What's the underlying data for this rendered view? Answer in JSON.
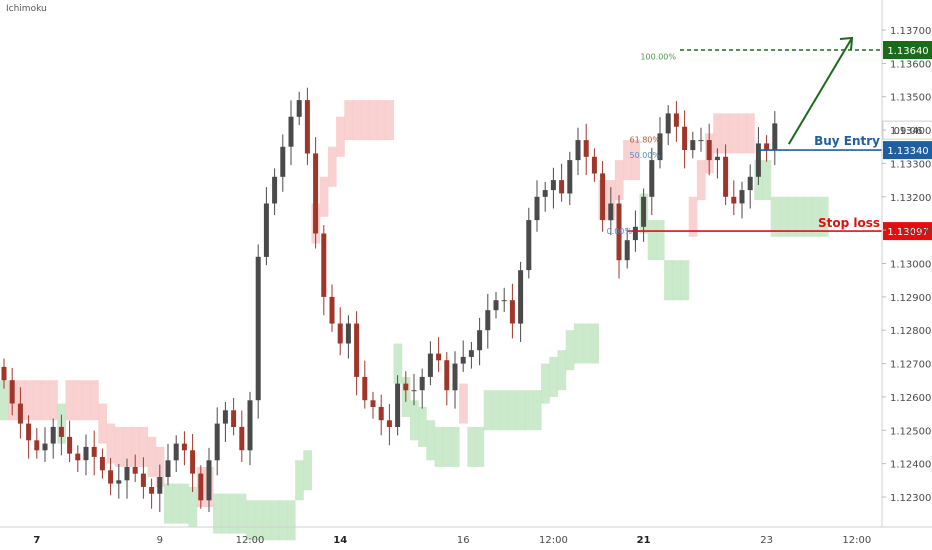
{
  "indicator_label": "Ichimoku",
  "chart_data": {
    "type": "candlestick",
    "indicator": "Ichimoku",
    "ylim": [
      1.1221,
      1.1379
    ],
    "y_ticks": [
      "1.12300",
      "1.12400",
      "1.12500",
      "1.12600",
      "1.12700",
      "1.12800",
      "1.12900",
      "1.13000",
      "1.13100",
      "1.13200",
      "1.13300",
      "1.13400",
      "1.13500",
      "1.13600",
      "1.13700"
    ],
    "x_ticks": [
      {
        "label": "7",
        "bold": true,
        "bar": 4
      },
      {
        "label": "9",
        "bold": false,
        "bar": 19
      },
      {
        "label": "12:00",
        "bold": false,
        "bar": 30
      },
      {
        "label": "14",
        "bold": true,
        "bar": 41
      },
      {
        "label": "16",
        "bold": false,
        "bar": 56
      },
      {
        "label": "12:00",
        "bold": false,
        "bar": 67
      },
      {
        "label": "21",
        "bold": true,
        "bar": 78
      },
      {
        "label": "23",
        "bold": false,
        "bar": 93
      },
      {
        "label": "12:00",
        "bold": false,
        "bar": 104
      }
    ],
    "candles_close": [
      1.1265,
      1.1258,
      1.1252,
      1.1247,
      1.1244,
      1.1246,
      1.1251,
      1.1248,
      1.1243,
      1.1241,
      1.1245,
      1.1242,
      1.1238,
      1.1234,
      1.1235,
      1.1239,
      1.1237,
      1.1233,
      1.1231,
      1.1236,
      1.1241,
      1.1246,
      1.1244,
      1.1237,
      1.1229,
      1.1241,
      1.1252,
      1.1256,
      1.1251,
      1.1244,
      1.1259,
      1.1302,
      1.1318,
      1.1326,
      1.1335,
      1.1344,
      1.1349,
      1.1333,
      1.1309,
      1.129,
      1.1282,
      1.1276,
      1.1282,
      1.1266,
      1.1259,
      1.1257,
      1.1253,
      1.1251,
      1.1264,
      1.1262,
      1.1262,
      1.1266,
      1.1273,
      1.1271,
      1.1262,
      1.127,
      1.1272,
      1.1274,
      1.128,
      1.1286,
      1.1289,
      1.1289,
      1.1282,
      1.1298,
      1.1313,
      1.132,
      1.1322,
      1.1325,
      1.1321,
      1.1331,
      1.1337,
      1.1332,
      1.1327,
      1.1313,
      1.1318,
      1.1301,
      1.1307,
      1.1311,
      1.132,
      1.1331,
      1.1339,
      1.1345,
      1.1341,
      1.1334,
      1.1337,
      1.1337,
      1.1331,
      1.1332,
      1.132,
      1.1318,
      1.1322,
      1.1326,
      1.1336,
      1.1334,
      1.1342
    ],
    "levels": [
      {
        "label": "1.13640",
        "value": 1.1364,
        "color": "#1b6b1b",
        "style": "dashed"
      },
      {
        "label": "1.13340",
        "value": 1.1334,
        "color": "#1f5fa0",
        "style": "solid"
      },
      {
        "label": "1.13097",
        "value": 1.13097,
        "color": "#e01010",
        "style": "solid"
      }
    ],
    "fib_labels": [
      "100.00%",
      "61.80%",
      "50.00%",
      "0.00%"
    ],
    "annotations": {
      "buy_entry": "Buy Entry",
      "stop_loss": "Stop loss",
      "countdown": "09:06"
    },
    "colors": {
      "up": "#4a4a4a",
      "down": "#a0362a",
      "cloud_bull": "#b9e3b9",
      "cloud_bear": "#f7c2c2",
      "entry": "#1f5fa0",
      "target": "#1b6b1b",
      "stop": "#e01010"
    }
  }
}
